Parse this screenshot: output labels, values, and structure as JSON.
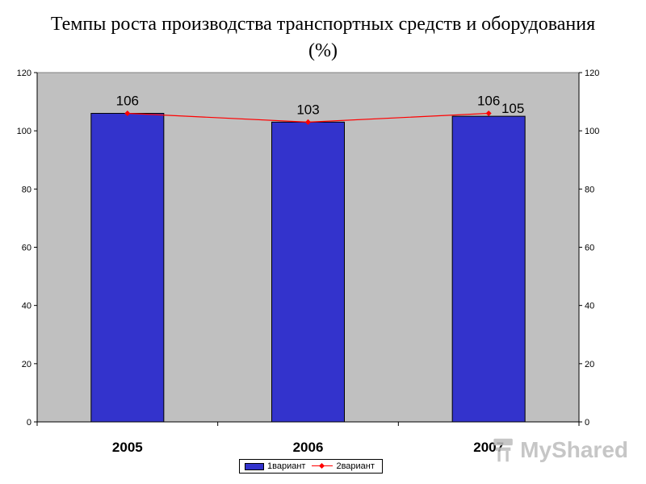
{
  "chart_data": {
    "type": "bar",
    "title": "Темпы роста производства транспортных средств и оборудования (%)",
    "categories": [
      "2005",
      "2006",
      "2007"
    ],
    "ylim": [
      0,
      120
    ],
    "yticks": [
      0,
      20,
      40,
      60,
      80,
      100,
      120
    ],
    "grid": false,
    "legend_position": "bottom",
    "series": [
      {
        "name": "1вариант",
        "type": "bar",
        "color": "#3333cc",
        "values": [
          106,
          103,
          105
        ],
        "labels": [
          "106",
          "103",
          "105"
        ]
      },
      {
        "name": "2вариант",
        "type": "line",
        "color": "#ff0000",
        "values": [
          106,
          103,
          106
        ],
        "labels": [
          "106",
          "103",
          "106"
        ]
      }
    ],
    "plot_background": "#c0c0c0"
  },
  "watermark": {
    "text": "MyShared",
    "icon": "myshared-logo-icon"
  }
}
